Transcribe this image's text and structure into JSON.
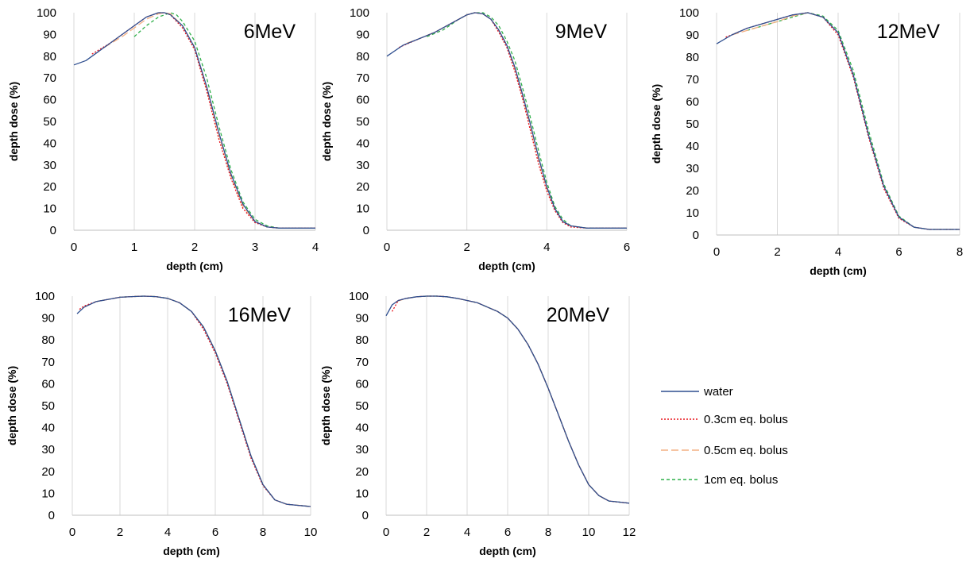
{
  "chart_data": [
    {
      "type": "line",
      "panel_label": "6MeV",
      "xlabel": "depth (cm)",
      "ylabel": "depth dose (%)",
      "xlim": [
        0,
        4
      ],
      "xticks": [
        0,
        1,
        2,
        3,
        4
      ],
      "ylim": [
        0,
        100
      ],
      "yticks": [
        0,
        10,
        20,
        30,
        40,
        50,
        60,
        70,
        80,
        90,
        100
      ],
      "grid": "vertical",
      "series": [
        {
          "name": "water",
          "x": [
            0,
            0.2,
            0.4,
            0.6,
            0.8,
            1.0,
            1.2,
            1.4,
            1.5,
            1.6,
            1.8,
            2.0,
            2.2,
            2.4,
            2.6,
            2.8,
            3.0,
            3.2,
            3.4,
            3.6,
            4.0
          ],
          "y": [
            76,
            78,
            82,
            86,
            90,
            94,
            98,
            100,
            100,
            99,
            94,
            84,
            66,
            45,
            26,
            12,
            4,
            1.5,
            1,
            1,
            1
          ]
        },
        {
          "name": "0.3cm eq. bolus",
          "x": [
            0.3,
            0.6,
            0.8,
            1.0,
            1.2,
            1.4,
            1.5,
            1.6,
            1.8,
            2.0,
            2.2,
            2.4,
            2.6,
            2.8,
            3.0,
            3.2,
            3.4,
            3.6,
            4.0
          ],
          "y": [
            81,
            86,
            90,
            94,
            98,
            100,
            100,
            99,
            93,
            83,
            64,
            42,
            24,
            10,
            3.5,
            1.5,
            1,
            1,
            1
          ]
        },
        {
          "name": "0.5cm eq. bolus",
          "x": [
            0.5,
            0.8,
            1.0,
            1.2,
            1.4,
            1.5,
            1.6,
            1.8,
            2.0,
            2.2,
            2.4,
            2.6,
            2.8,
            3.0,
            3.2,
            3.4,
            3.6,
            4.0
          ],
          "y": [
            84,
            89,
            93,
            97,
            99.5,
            100,
            99.5,
            94,
            84,
            65,
            44,
            25,
            11,
            4,
            1.5,
            1,
            1,
            1
          ]
        },
        {
          "name": "1cm eq. bolus",
          "x": [
            1.0,
            1.2,
            1.4,
            1.6,
            1.7,
            1.8,
            2.0,
            2.2,
            2.4,
            2.6,
            2.8,
            3.0,
            3.2,
            3.4,
            3.6,
            4.0
          ],
          "y": [
            89,
            94,
            98,
            100,
            99,
            96,
            87,
            70,
            48,
            28,
            13,
            5,
            2,
            1,
            1,
            1
          ]
        }
      ]
    },
    {
      "type": "line",
      "panel_label": "9MeV",
      "xlabel": "depth (cm)",
      "ylabel": "depth dose (%)",
      "xlim": [
        0,
        6
      ],
      "xticks": [
        0,
        2,
        4,
        6
      ],
      "ylim": [
        0,
        100
      ],
      "yticks": [
        0,
        10,
        20,
        30,
        40,
        50,
        60,
        70,
        80,
        90,
        100
      ],
      "grid": "vertical",
      "series": [
        {
          "name": "water",
          "x": [
            0,
            0.4,
            0.8,
            1.2,
            1.6,
            2.0,
            2.2,
            2.4,
            2.6,
            2.8,
            3.0,
            3.2,
            3.4,
            3.6,
            3.8,
            4.0,
            4.2,
            4.4,
            4.6,
            5.0,
            5.5,
            6.0
          ],
          "y": [
            80,
            85,
            88,
            91,
            95,
            99,
            100,
            99.5,
            97,
            92,
            85,
            75,
            62,
            48,
            33,
            20,
            10,
            4,
            2,
            1,
            1,
            1
          ]
        },
        {
          "name": "0.3cm eq. bolus",
          "x": [
            0.3,
            0.8,
            1.2,
            1.6,
            2.0,
            2.2,
            2.4,
            2.6,
            2.8,
            3.0,
            3.2,
            3.4,
            3.6,
            3.8,
            4.0,
            4.2,
            4.4,
            4.6,
            5.0,
            6.0
          ],
          "y": [
            84,
            88,
            91,
            95,
            99,
            100,
            99.5,
            97,
            91,
            84,
            73,
            60,
            45,
            30,
            18,
            9,
            3.5,
            1.5,
            1,
            1
          ]
        },
        {
          "name": "0.5cm eq. bolus",
          "x": [
            0.5,
            0.8,
            1.2,
            1.6,
            2.0,
            2.2,
            2.4,
            2.6,
            2.8,
            3.0,
            3.2,
            3.4,
            3.6,
            3.8,
            4.0,
            4.2,
            4.4,
            4.6,
            5.0,
            6.0
          ],
          "y": [
            86,
            88,
            91,
            95,
            99,
            100,
            99.5,
            97,
            92,
            85,
            74,
            61,
            47,
            32,
            19,
            10,
            4,
            2,
            1,
            1
          ]
        },
        {
          "name": "1cm eq. bolus",
          "x": [
            1.0,
            1.4,
            1.8,
            2.0,
            2.2,
            2.4,
            2.6,
            2.8,
            3.0,
            3.2,
            3.4,
            3.6,
            3.8,
            4.0,
            4.2,
            4.4,
            4.6,
            5.0,
            6.0
          ],
          "y": [
            89,
            92,
            97,
            99,
            100,
            100,
            98,
            94,
            87,
            78,
            65,
            51,
            36,
            22,
            11,
            5,
            2,
            1,
            1
          ]
        }
      ]
    },
    {
      "type": "line",
      "panel_label": "12MeV",
      "xlabel": "depth (cm)",
      "ylabel": "depth dose (%)",
      "xlim": [
        0,
        8
      ],
      "xticks": [
        0,
        2,
        4,
        6,
        8
      ],
      "ylim": [
        0,
        100
      ],
      "yticks": [
        0,
        10,
        20,
        30,
        40,
        50,
        60,
        70,
        80,
        90,
        100
      ],
      "grid": "vertical",
      "series": [
        {
          "name": "water",
          "x": [
            0,
            0.5,
            1.0,
            1.5,
            2.0,
            2.5,
            3.0,
            3.5,
            4.0,
            4.5,
            5.0,
            5.5,
            6.0,
            6.5,
            7.0,
            7.5,
            8.0
          ],
          "y": [
            86,
            90,
            93,
            95,
            97,
            99,
            100,
            98,
            91,
            72,
            45,
            22,
            8,
            3.5,
            2.5,
            2.5,
            2.5
          ]
        },
        {
          "name": "0.3cm eq. bolus",
          "x": [
            0.3,
            0.5,
            1.0,
            1.5,
            2.0,
            2.5,
            3.0,
            3.5,
            4.0,
            4.5,
            5.0,
            5.5,
            6.0,
            6.5,
            7.0,
            8.0
          ],
          "y": [
            89,
            90,
            93,
            95,
            97,
            99,
            100,
            98,
            90,
            71,
            44,
            21,
            7.5,
            3.5,
            2.5,
            2.5
          ]
        },
        {
          "name": "0.5cm eq. bolus",
          "x": [
            0.5,
            1.0,
            1.5,
            2.0,
            2.5,
            3.0,
            3.5,
            4.0,
            4.5,
            5.0,
            5.5,
            6.0,
            6.5,
            7.0,
            8.0
          ],
          "y": [
            90,
            92,
            94,
            96,
            98.5,
            100,
            98,
            91,
            72,
            45,
            22,
            8,
            3.5,
            2.5,
            2.5
          ]
        },
        {
          "name": "1cm eq. bolus",
          "x": [
            1.0,
            1.5,
            2.0,
            2.5,
            3.0,
            3.5,
            4.0,
            4.5,
            5.0,
            5.5,
            6.0,
            6.5,
            7.0,
            8.0
          ],
          "y": [
            92,
            94,
            96,
            98,
            100,
            98.5,
            92,
            74,
            47,
            23,
            8.5,
            3.5,
            2.5,
            2.5
          ]
        }
      ]
    },
    {
      "type": "line",
      "panel_label": "16MeV",
      "xlabel": "depth (cm)",
      "ylabel": "depth dose (%)",
      "xlim": [
        0,
        10
      ],
      "xticks": [
        0,
        2,
        4,
        6,
        8,
        10
      ],
      "ylim": [
        0,
        100
      ],
      "yticks": [
        0,
        10,
        20,
        30,
        40,
        50,
        60,
        70,
        80,
        90,
        100
      ],
      "grid": "vertical",
      "series": [
        {
          "name": "water",
          "x": [
            0.2,
            0.5,
            1.0,
            1.5,
            2.0,
            2.5,
            3.0,
            3.5,
            4.0,
            4.5,
            5.0,
            5.5,
            6.0,
            6.5,
            7.0,
            7.5,
            8.0,
            8.5,
            9.0,
            9.5,
            10.0
          ],
          "y": [
            92,
            95,
            97.5,
            98.5,
            99.5,
            99.8,
            100,
            99.8,
            99,
            97,
            93,
            86,
            75,
            61,
            44,
            27,
            14,
            7,
            5,
            4.5,
            4
          ]
        },
        {
          "name": "0.3cm eq. bolus",
          "x": [
            0.3,
            0.5,
            1.0,
            1.5,
            2.0,
            2.5,
            3.0,
            3.5,
            4.0,
            4.5,
            5.0,
            5.5,
            6.0,
            6.5,
            7.0,
            7.5,
            8.0,
            8.5,
            9.0,
            10.0
          ],
          "y": [
            94,
            95.5,
            97.5,
            98.5,
            99.5,
            99.8,
            100,
            99.8,
            99,
            97,
            93,
            85,
            74,
            60,
            43,
            26,
            13.5,
            7,
            5,
            4
          ]
        },
        {
          "name": "0.5cm eq. bolus",
          "x": [
            0.5,
            1.0,
            1.5,
            2.0,
            2.5,
            3.0,
            3.5,
            4.0,
            4.5,
            5.0,
            5.5,
            6.0,
            6.5,
            7.0,
            7.5,
            8.0,
            8.5,
            9.0,
            10.0
          ],
          "y": [
            95,
            97.5,
            98.5,
            99.5,
            99.8,
            100,
            99.8,
            99,
            97,
            93,
            86,
            75,
            61,
            44,
            27,
            14,
            7,
            5,
            4
          ]
        },
        {
          "name": "1cm eq. bolus",
          "x": [
            1.0,
            1.5,
            2.0,
            2.5,
            3.0,
            3.5,
            4.0,
            4.5,
            5.0,
            5.5,
            6.0,
            6.5,
            7.0,
            7.5,
            8.0,
            8.5,
            9.0,
            10.0
          ],
          "y": [
            97.5,
            98.5,
            99.5,
            99.8,
            100,
            99.8,
            99,
            97,
            93,
            86,
            75,
            61,
            44,
            27,
            14,
            7,
            5,
            4
          ]
        }
      ]
    },
    {
      "type": "line",
      "panel_label": "20MeV",
      "xlabel": "depth (cm)",
      "ylabel": "depth dose (%)",
      "xlim": [
        0,
        12
      ],
      "xticks": [
        0,
        2,
        4,
        6,
        8,
        10,
        12
      ],
      "ylim": [
        0,
        100
      ],
      "yticks": [
        0,
        10,
        20,
        30,
        40,
        50,
        60,
        70,
        80,
        90,
        100
      ],
      "grid": "vertical",
      "series": [
        {
          "name": "water",
          "x": [
            0,
            0.3,
            0.6,
            1.0,
            1.5,
            2.0,
            2.5,
            3.0,
            3.5,
            4.0,
            4.5,
            5.0,
            5.5,
            6.0,
            6.5,
            7.0,
            7.5,
            8.0,
            8.5,
            9.0,
            9.5,
            10.0,
            10.5,
            11.0,
            11.5,
            12.0
          ],
          "y": [
            91,
            96,
            98,
            99,
            99.7,
            100,
            100,
            99.7,
            99,
            98,
            97,
            95,
            93,
            90,
            85,
            78,
            69,
            58,
            46,
            34,
            23,
            14,
            9,
            6.5,
            6,
            5.5
          ]
        },
        {
          "name": "0.3cm eq. bolus",
          "x": [
            0.3,
            0.6,
            1.0,
            1.5,
            2.0,
            2.5,
            3.0,
            3.5,
            4.0,
            4.5,
            5.0,
            5.5,
            6.0,
            6.5,
            7.0,
            7.5,
            8.0,
            8.5,
            9.0,
            9.5,
            10.0,
            10.5,
            11.0,
            12.0
          ],
          "y": [
            93,
            98,
            99,
            99.7,
            100,
            100,
            99.7,
            99,
            98,
            97,
            95,
            93,
            90,
            85,
            78,
            69,
            58,
            46,
            34,
            23,
            14,
            9,
            6.5,
            5.5
          ]
        },
        {
          "name": "0.5cm eq. bolus",
          "x": [
            0.5,
            1.0,
            1.5,
            2.0,
            2.5,
            3.0,
            3.5,
            4.0,
            4.5,
            5.0,
            5.5,
            6.0,
            6.5,
            7.0,
            7.5,
            8.0,
            8.5,
            9.0,
            9.5,
            10.0,
            10.5,
            11.0,
            12.0
          ],
          "y": [
            97.5,
            99,
            99.7,
            100,
            100,
            99.7,
            99,
            98,
            97,
            95,
            93,
            90,
            85,
            78,
            69,
            58,
            46,
            34,
            23,
            14,
            9,
            6.5,
            5.5
          ]
        },
        {
          "name": "1cm eq. bolus",
          "x": [
            1.0,
            1.5,
            2.0,
            2.5,
            3.0,
            3.5,
            4.0,
            4.5,
            5.0,
            5.5,
            6.0,
            6.5,
            7.0,
            7.5,
            8.0,
            8.5,
            9.0,
            9.5,
            10.0,
            10.5,
            11.0,
            12.0
          ],
          "y": [
            99,
            99.7,
            100,
            100,
            99.7,
            99,
            98,
            97,
            95,
            93,
            90,
            85,
            78,
            69,
            58,
            46,
            34,
            23,
            14,
            9,
            6.5,
            5.5
          ]
        }
      ]
    }
  ],
  "legend": {
    "placement": "right",
    "entries": [
      {
        "name": "water",
        "color": "#2e4e8f",
        "dash": "solid"
      },
      {
        "name": "0.3cm eq. bolus",
        "color": "#e8141b",
        "dash": "dotted"
      },
      {
        "name": "0.5cm eq. bolus",
        "color": "#f4b183",
        "dash": "long-dash"
      },
      {
        "name": "1cm eq. bolus",
        "color": "#2fb04a",
        "dash": "dashed"
      }
    ]
  }
}
